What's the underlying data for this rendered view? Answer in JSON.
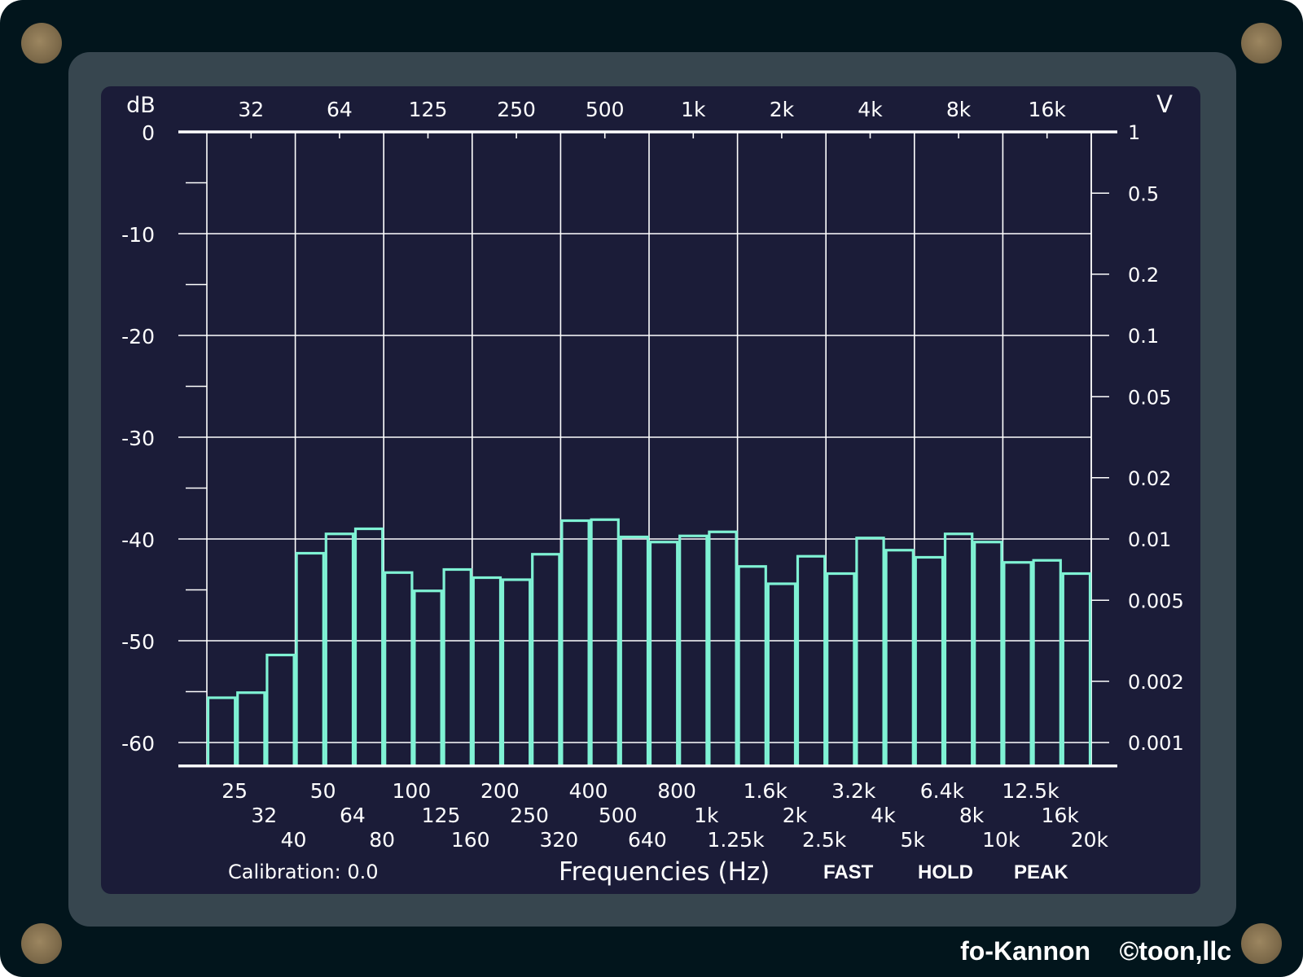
{
  "app": {
    "brand": "fo-Kannon",
    "copyright": "©toon,llc"
  },
  "screen": {
    "calibration_label": "Calibration:",
    "calibration_value": "0.0",
    "x_axis_title": "Frequencies (Hz)",
    "status": {
      "fast": "FAST",
      "hold": "HOLD",
      "peak": "PEAK"
    }
  },
  "colors": {
    "bar": "#7ff2d4",
    "grid": "#ffffff",
    "screen": "#1b1c38",
    "bezel": "#37464f",
    "case": "#02151c"
  },
  "chart_data": {
    "type": "bar",
    "left_axis_unit": "dB",
    "right_axis_unit": "V",
    "ylim": [
      -62.3,
      0
    ],
    "y_ticks": [
      0,
      -10,
      -20,
      -30,
      -40,
      -50,
      -60
    ],
    "right_ticks": [
      {
        "label": "1",
        "db": 0
      },
      {
        "label": "0.5",
        "db": -6.02
      },
      {
        "label": "0.2",
        "db": -13.98
      },
      {
        "label": "0.1",
        "db": -20
      },
      {
        "label": "0.05",
        "db": -26.02
      },
      {
        "label": "0.02",
        "db": -33.98
      },
      {
        "label": "0.01",
        "db": -40
      },
      {
        "label": "0.005",
        "db": -46.02
      },
      {
        "label": "0.002",
        "db": -53.98
      },
      {
        "label": "0.001",
        "db": -60
      }
    ],
    "top_labels": [
      "32",
      "64",
      "125",
      "250",
      "500",
      "1k",
      "2k",
      "4k",
      "8k",
      "16k"
    ],
    "categories": [
      "25",
      "32",
      "40",
      "50",
      "64",
      "80",
      "100",
      "125",
      "160",
      "200",
      "250",
      "320",
      "400",
      "500",
      "640",
      "800",
      "1k",
      "1.25k",
      "1.6k",
      "2k",
      "2.5k",
      "3.2k",
      "4k",
      "5k",
      "6.4k",
      "8k",
      "10k",
      "12.5k",
      "16k",
      "20k"
    ],
    "values": [
      -55.6,
      -55.1,
      -51.4,
      -41.4,
      -39.5,
      -39.0,
      -43.3,
      -45.1,
      -43.0,
      -43.8,
      -44.0,
      -41.5,
      -38.2,
      -38.1,
      -39.8,
      -40.3,
      -39.7,
      -39.3,
      -42.7,
      -44.4,
      -41.7,
      -43.4,
      -39.9,
      -41.1,
      -41.8,
      -39.5,
      -40.3,
      -42.3,
      -42.1,
      -43.4
    ],
    "grid": true
  }
}
